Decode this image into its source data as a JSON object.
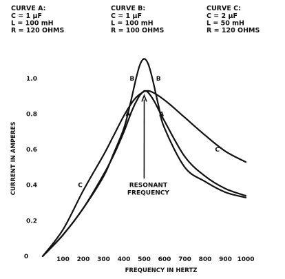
{
  "chart_data": {
    "type": "line",
    "xlabel": "FREQUENCY IN HERTZ",
    "ylabel": "CURRENT IN AMPERES",
    "xlim": [
      0,
      1000
    ],
    "ylim": [
      0,
      1.1
    ],
    "x_ticks": [
      "100",
      "200",
      "300",
      "400",
      "500",
      "600",
      "700",
      "800",
      "900",
      "1000"
    ],
    "y_ticks": [
      "0",
      "0.2",
      "0.4",
      "0.6",
      "0.8",
      "1.0"
    ],
    "grid": false,
    "captions": [
      {
        "name": "CURVE A:",
        "lines": [
          "C = 1 µF",
          "L = 100 mH",
          "R = 120 OHMS"
        ]
      },
      {
        "name": "CURVE B:",
        "lines": [
          "C = 1 µF",
          "L = 100 mH",
          "R = 100 OHMS"
        ]
      },
      {
        "name": "CURVE C:",
        "lines": [
          "C = 2 µF",
          "L = 50 mH",
          "R = 120 OHMS"
        ]
      }
    ],
    "series": [
      {
        "name": "A",
        "x": [
          0,
          100,
          200,
          300,
          350,
          400,
          440,
          470,
          490,
          503,
          520,
          550,
          600,
          700,
          800,
          900,
          1000
        ],
        "y": [
          0.0,
          0.12,
          0.27,
          0.46,
          0.57,
          0.7,
          0.82,
          0.89,
          0.92,
          0.93,
          0.92,
          0.87,
          0.76,
          0.56,
          0.45,
          0.38,
          0.34
        ]
      },
      {
        "name": "B",
        "x": [
          0,
          100,
          200,
          300,
          350,
          400,
          430,
          460,
          480,
          500,
          520,
          540,
          570,
          600,
          700,
          800,
          900,
          1000
        ],
        "y": [
          0.0,
          0.12,
          0.27,
          0.45,
          0.58,
          0.72,
          0.85,
          1.0,
          1.08,
          1.11,
          1.08,
          1.0,
          0.85,
          0.72,
          0.5,
          0.42,
          0.36,
          0.33
        ]
      },
      {
        "name": "C",
        "x": [
          0,
          100,
          200,
          300,
          350,
          400,
          450,
          490,
          520,
          560,
          620,
          700,
          800,
          900,
          1000
        ],
        "y": [
          0.0,
          0.15,
          0.37,
          0.57,
          0.68,
          0.79,
          0.88,
          0.92,
          0.93,
          0.91,
          0.86,
          0.78,
          0.68,
          0.59,
          0.53
        ]
      }
    ],
    "curve_labels": [
      {
        "text": "A",
        "x": 420,
        "y": 0.8
      },
      {
        "text": "A",
        "x": 585,
        "y": 0.8
      },
      {
        "text": "B",
        "x": 440,
        "y": 1.0
      },
      {
        "text": "B",
        "x": 570,
        "y": 1.0
      },
      {
        "text": "C",
        "x": 185,
        "y": 0.4
      },
      {
        "text": "C",
        "x": 860,
        "y": 0.6
      }
    ],
    "annotation": {
      "lines": [
        "RESONANT",
        "FREQUENCY"
      ],
      "arrow_to": {
        "x": 500,
        "y": 0.92
      },
      "text_at": {
        "x": 520,
        "y": 0.39
      }
    }
  }
}
